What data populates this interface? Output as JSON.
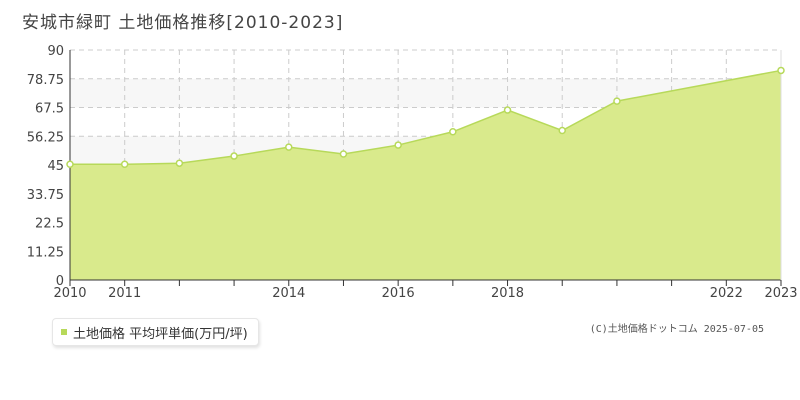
{
  "chart_data": {
    "type": "area",
    "title": "安城市緑町 土地価格推移[2010-2023]",
    "x": [
      2010,
      2011,
      2012,
      2013,
      2014,
      2015,
      2016,
      2017,
      2018,
      2019,
      2020,
      2021,
      2022,
      2023
    ],
    "series": [
      {
        "name": "土地価格 平均坪単価(万円/坪)",
        "values": [
          null,
          45.3,
          45.7,
          48.5,
          52.0,
          49.3,
          52.8,
          58.0,
          66.5,
          58.5,
          70.0,
          82.0,
          null,
          null
        ]
      }
    ],
    "x_ticks": [
      "2010",
      "2011",
      "2014",
      "2016",
      "2018",
      "2022",
      "2023"
    ],
    "y_ticks": [
      "0",
      "11.25",
      "22.5",
      "33.75",
      "45",
      "56.25",
      "67.5",
      "78.75",
      "90"
    ],
    "xlabel": "",
    "ylabel": "",
    "ylim": [
      0,
      90
    ],
    "grid": true,
    "legend_position": "bottom-left",
    "fill_color": "#d9ea8c",
    "line_color": "#b7d95a"
  },
  "legend": {
    "label": "土地価格 平均坪単価(万円/坪)",
    "color": "#b7d95a"
  },
  "credit": "(C)土地価格ドットコム 2025-07-05"
}
